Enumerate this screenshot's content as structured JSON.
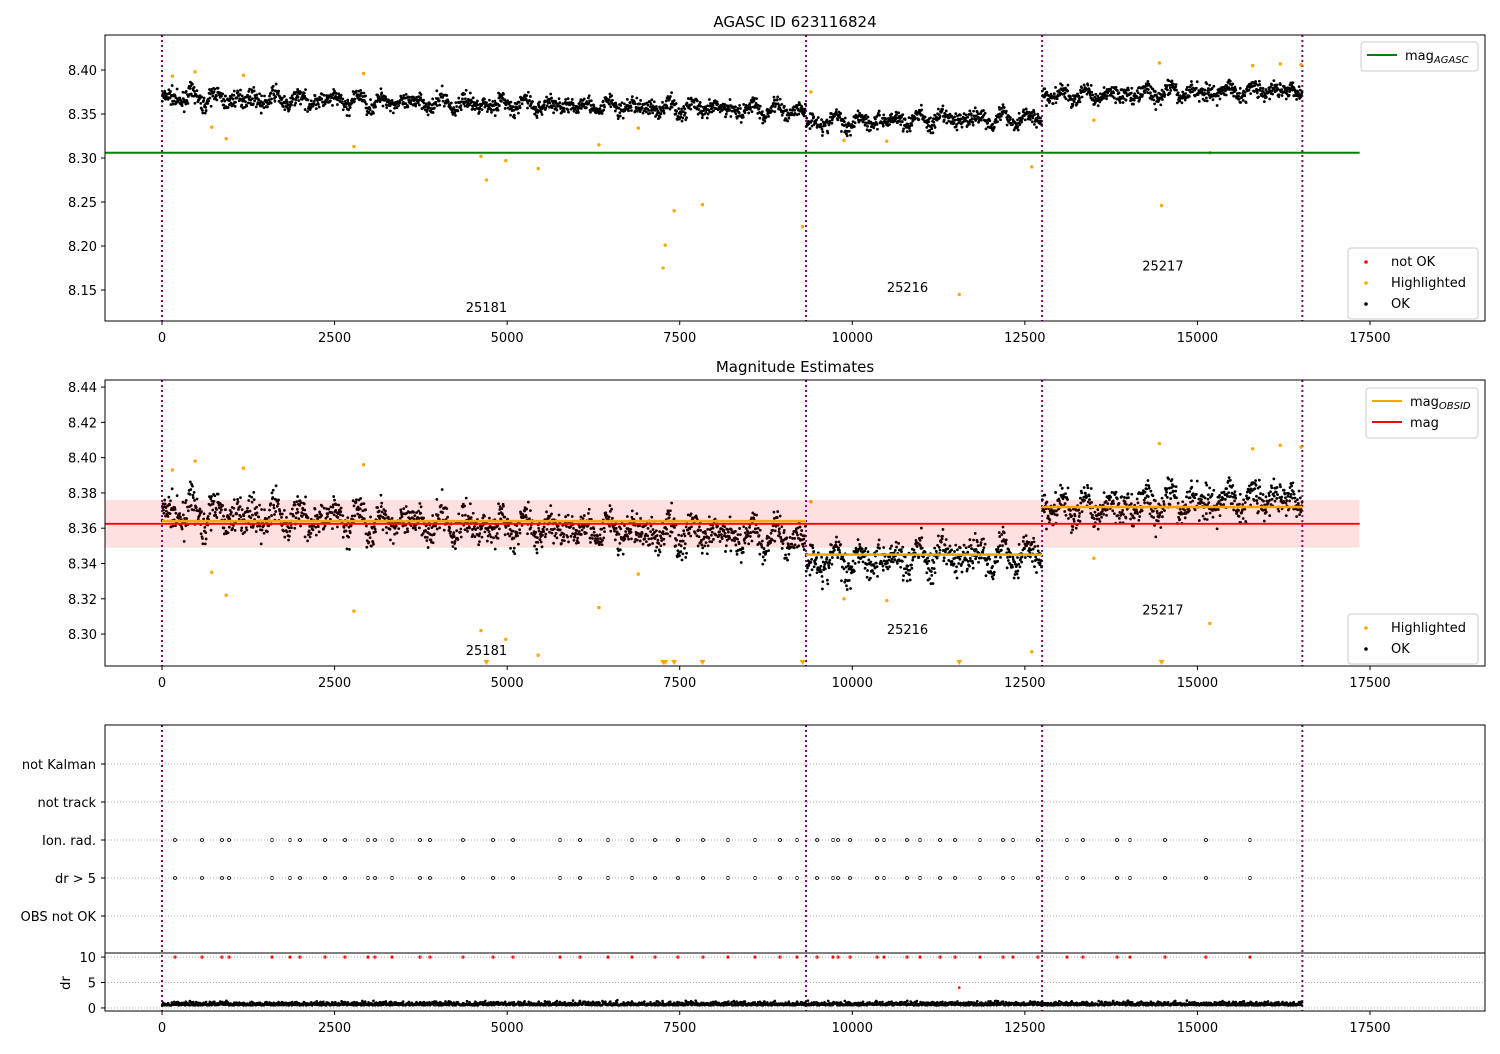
{
  "chart_data": [
    {
      "type": "scatter",
      "title": "AGASC ID 623116824",
      "xlim": [
        -826,
        19166
      ],
      "ylim": [
        8.1148,
        8.4398
      ],
      "xticks": [
        0,
        2500,
        5000,
        7500,
        10000,
        12500,
        15000,
        17500
      ],
      "yticks": [
        8.15,
        8.2,
        8.25,
        8.3,
        8.35,
        8.4
      ],
      "mag_agasc": 8.306,
      "mag_agasc_xrange": [
        -826,
        17350
      ],
      "legend_upper": [
        {
          "label": "mag",
          "sub": "AGASC",
          "color": "#008000"
        }
      ],
      "legend_lower": [
        {
          "label": "not OK",
          "color": "#ff0000"
        },
        {
          "label": "Highlighted",
          "color": "#ffa500"
        },
        {
          "label": "OK",
          "color": "#000000"
        }
      ],
      "obsid_labels": [
        {
          "text": "25181",
          "x": 4700,
          "y": 8.125
        },
        {
          "text": "25216",
          "x": 10800,
          "y": 8.148
        },
        {
          "text": "25217",
          "x": 14500,
          "y": 8.172
        }
      ]
    },
    {
      "type": "scatter",
      "title": "Magnitude Estimates",
      "xlim": [
        -826,
        19166
      ],
      "ylim": [
        8.2819,
        8.444
      ],
      "xticks": [
        0,
        2500,
        5000,
        7500,
        10000,
        12500,
        15000,
        17500
      ],
      "yticks": [
        8.3,
        8.32,
        8.34,
        8.36,
        8.38,
        8.4,
        8.42,
        8.44
      ],
      "mag": 8.3625,
      "mag_band": [
        8.349,
        8.376
      ],
      "mag_xrange": [
        -826,
        17350
      ],
      "mag_obsid": [
        {
          "x": [
            0,
            9330
          ],
          "mag": 8.364
        },
        {
          "x": [
            9330,
            12750
          ],
          "mag": 8.345
        },
        {
          "x": [
            12750,
            16520
          ],
          "mag": 8.372
        }
      ],
      "legend_upper": [
        {
          "label": "mag",
          "sub": "OBSID",
          "color": "#ffa500"
        },
        {
          "label": "mag",
          "sub": "",
          "color": "#ff0000"
        }
      ],
      "legend_lower": [
        {
          "label": "Highlighted",
          "color": "#ffa500"
        },
        {
          "label": "OK",
          "color": "#000000"
        }
      ],
      "obsid_labels": [
        {
          "text": "25181",
          "x": 4700,
          "y": 8.288
        },
        {
          "text": "25216",
          "x": 10800,
          "y": 8.3
        },
        {
          "text": "25217",
          "x": 14500,
          "y": 8.311
        }
      ]
    },
    {
      "type": "scatter",
      "title": "",
      "xlim": [
        -826,
        19166
      ],
      "xticks": [
        0,
        2500,
        5000,
        7500,
        10000,
        12500,
        15000,
        17500
      ],
      "categories": [
        "not Kalman",
        "not track",
        "Ion. rad.",
        "dr > 5",
        "OBS not OK"
      ],
      "dr_ylim": [
        -0.6,
        10.8
      ],
      "dr_yticks": [
        0,
        5,
        10
      ],
      "dr_ylabel": "dr"
    }
  ],
  "obsid_boundaries": [
    0,
    9330,
    12750,
    16520
  ],
  "segments": [
    {
      "x": [
        0,
        9330
      ],
      "start": 8.369,
      "end": 8.354
    },
    {
      "x": [
        9330,
        12750
      ],
      "start": 8.341,
      "end": 8.346
    },
    {
      "x": [
        12750,
        16520
      ],
      "start": 8.37,
      "end": 8.378
    }
  ],
  "highlighted": [
    [
      150,
      8.393
    ],
    [
      480,
      8.398
    ],
    [
      720,
      8.335
    ],
    [
      930,
      8.322
    ],
    [
      1180,
      8.394
    ],
    [
      2780,
      8.313
    ],
    [
      2920,
      8.396
    ],
    [
      4620,
      8.302
    ],
    [
      4700,
      8.275
    ],
    [
      4980,
      8.297
    ],
    [
      5450,
      8.288
    ],
    [
      6330,
      8.315
    ],
    [
      6900,
      8.334
    ],
    [
      7260,
      8.175
    ],
    [
      7290,
      8.201
    ],
    [
      7420,
      8.24
    ],
    [
      7830,
      8.247
    ],
    [
      9280,
      8.222
    ],
    [
      9400,
      8.375
    ],
    [
      9880,
      8.32
    ],
    [
      10500,
      8.319
    ],
    [
      11550,
      8.145
    ],
    [
      12600,
      8.29
    ],
    [
      13500,
      8.343
    ],
    [
      14450,
      8.408
    ],
    [
      14480,
      8.246
    ],
    [
      15180,
      8.306
    ],
    [
      15800,
      8.405
    ],
    [
      16200,
      8.407
    ],
    [
      16500,
      8.406
    ]
  ],
  "flag_times": [
    188,
    579,
    869,
    971,
    1594,
    1854,
    1999,
    2361,
    2651,
    2984,
    3086,
    3332,
    3738,
    3882,
    4360,
    4795,
    5085,
    5766,
    6055,
    6461,
    6809,
    7142,
    7475,
    7837,
    8199,
    8591,
    8953,
    9199,
    9489,
    9720,
    9793,
    9967,
    10358,
    10459,
    10792,
    10981,
    11271,
    11488,
    11850,
    12183,
    12328,
    12690,
    13110,
    13342,
    13835,
    14023,
    14530,
    15124,
    15761
  ],
  "flag_rows": [
    "Ion. rad.",
    "dr > 5"
  ]
}
